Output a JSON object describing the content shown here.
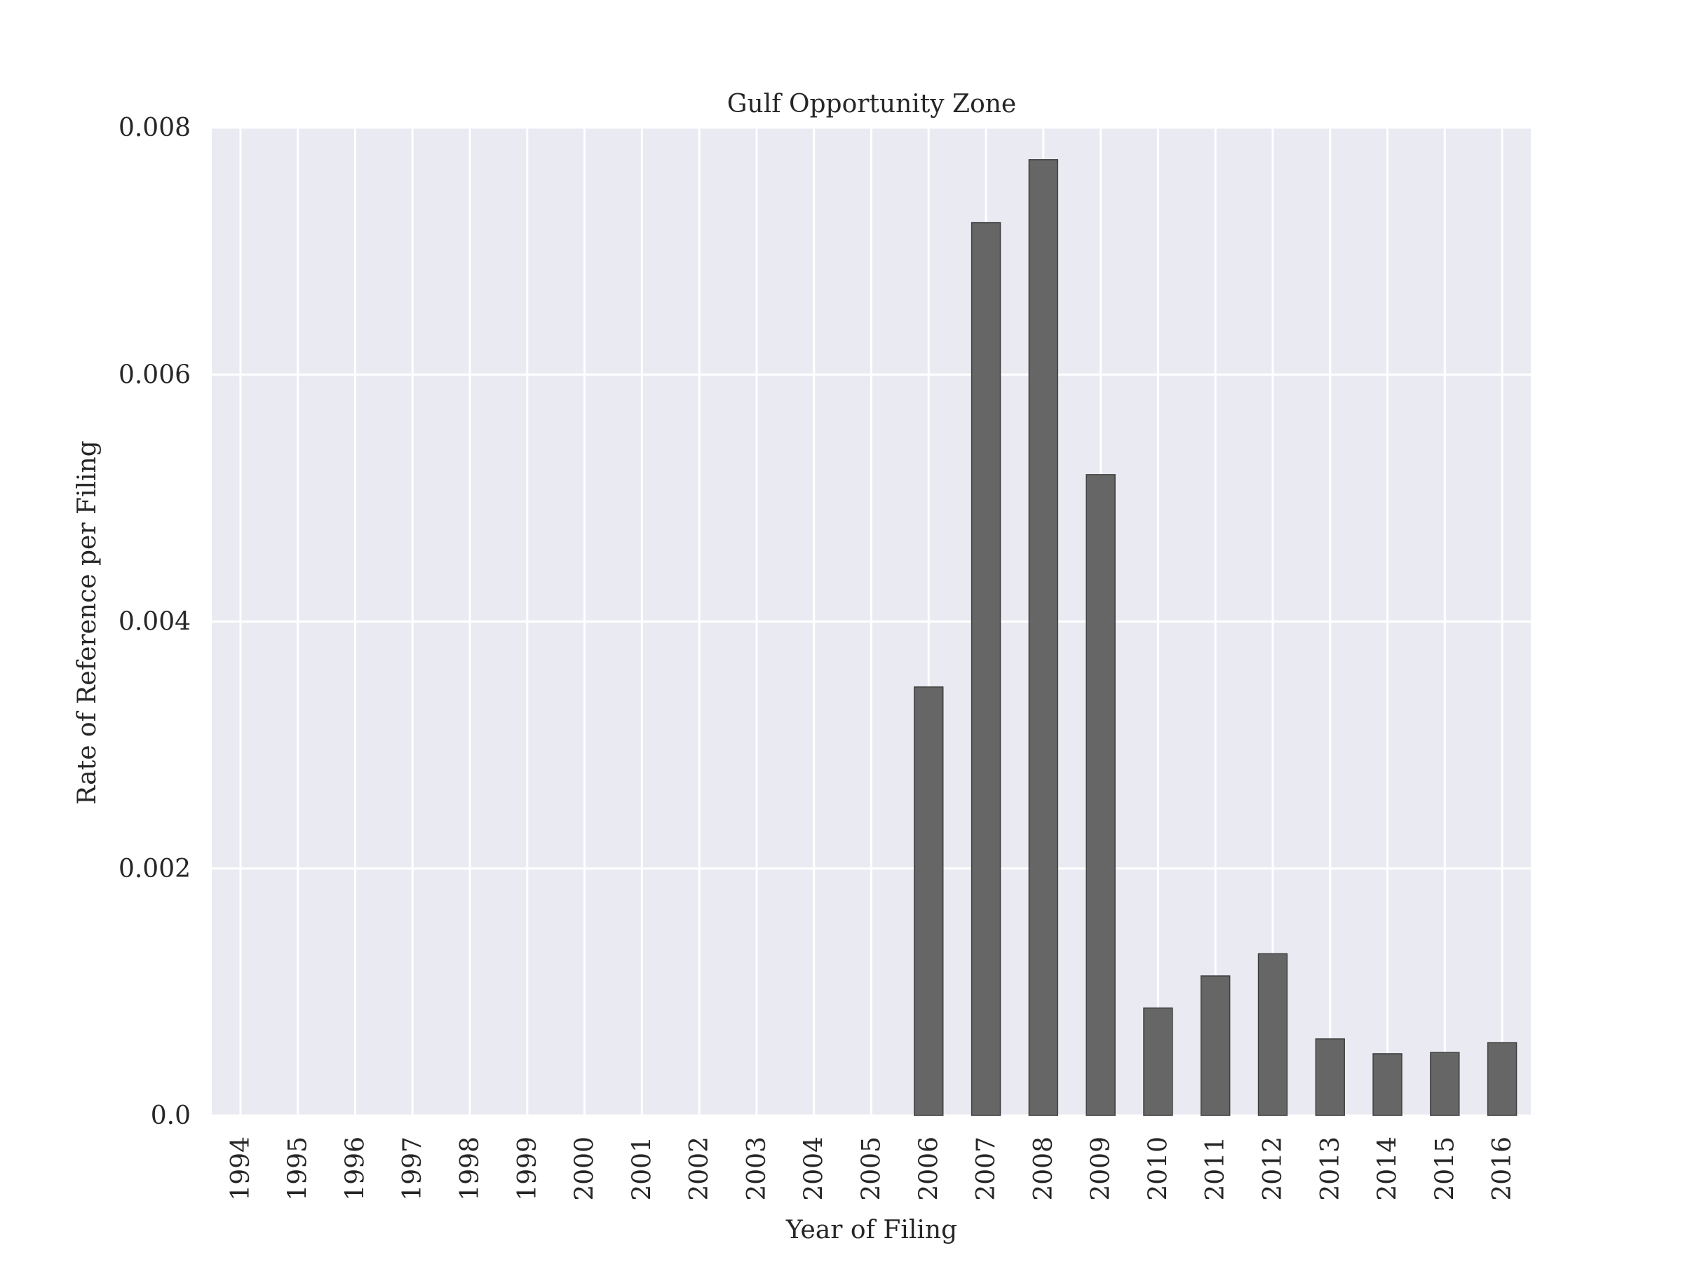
{
  "chart_data": {
    "type": "bar",
    "title": "Gulf Opportunity Zone",
    "xlabel": "Year of Filing",
    "ylabel": "Rate of Reference per Filing",
    "categories": [
      "1994",
      "1995",
      "1996",
      "1997",
      "1998",
      "1999",
      "2000",
      "2001",
      "2002",
      "2003",
      "2004",
      "2005",
      "2006",
      "2007",
      "2008",
      "2009",
      "2010",
      "2011",
      "2012",
      "2013",
      "2014",
      "2015",
      "2016"
    ],
    "values": [
      0,
      0,
      0,
      0,
      0,
      0,
      0,
      0,
      0,
      0,
      0,
      0,
      0.00347,
      0.00723,
      0.00774,
      0.00519,
      0.00087,
      0.00113,
      0.00131,
      0.00062,
      0.0005,
      0.00051,
      0.00059
    ],
    "ylim": [
      0,
      0.008
    ],
    "yticks": [
      0,
      0.002,
      0.004,
      0.006,
      0.008
    ],
    "ytick_labels": [
      "0.0",
      "0.002",
      "0.004",
      "0.006",
      "0.008"
    ],
    "grid": true,
    "colors": {
      "bar": "#666667",
      "plot_background": "#eaeaf2",
      "grid": "#ffffff",
      "text": "#262626"
    }
  }
}
